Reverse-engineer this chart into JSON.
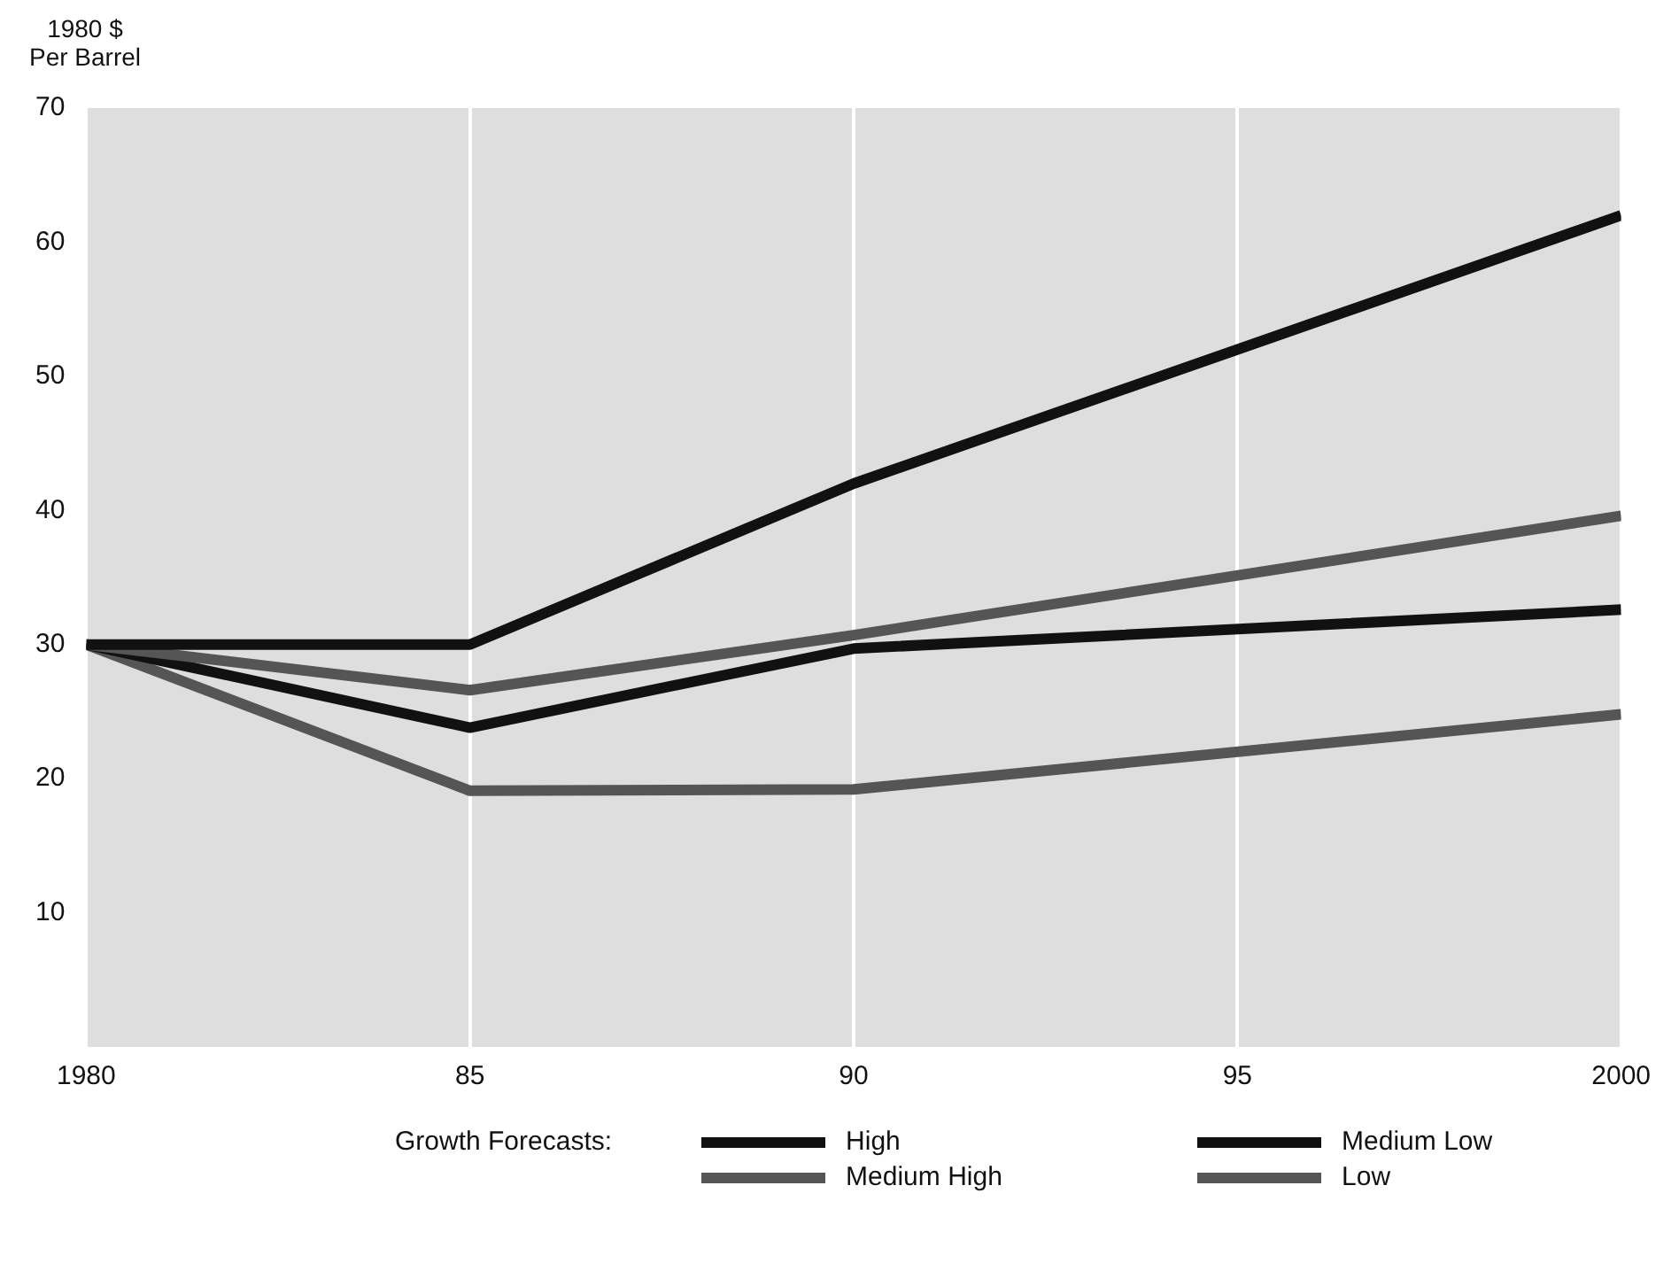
{
  "chart_data": {
    "type": "line",
    "ylabel": "1980 $\nPer Barrel",
    "legend_title": "Growth Forecasts:",
    "x": [
      1980,
      1985,
      1990,
      2000
    ],
    "series": [
      {
        "name": "High",
        "color": "#111111",
        "values": [
          30,
          30,
          42,
          62
        ]
      },
      {
        "name": "Medium High",
        "color": "#555555",
        "values": [
          30,
          26.6,
          30.7,
          39.6
        ]
      },
      {
        "name": "Medium Low",
        "color": "#111111",
        "values": [
          30,
          23.8,
          29.7,
          32.6
        ]
      },
      {
        "name": "Low",
        "color": "#555555",
        "values": [
          30,
          19.1,
          19.2,
          24.8
        ]
      }
    ],
    "xlim": [
      1980,
      2000
    ],
    "xticks": [
      1980,
      {
        "value": 1985,
        "label": "85"
      },
      {
        "value": 1990,
        "label": "90"
      },
      {
        "value": 1995,
        "label": "95"
      },
      2000
    ],
    "ylim": [
      0,
      70
    ],
    "yticks": [
      10,
      20,
      30,
      40,
      50,
      60,
      70
    ],
    "grid": "x",
    "legend": "bottom",
    "marker": "none",
    "line_style": "solid"
  }
}
